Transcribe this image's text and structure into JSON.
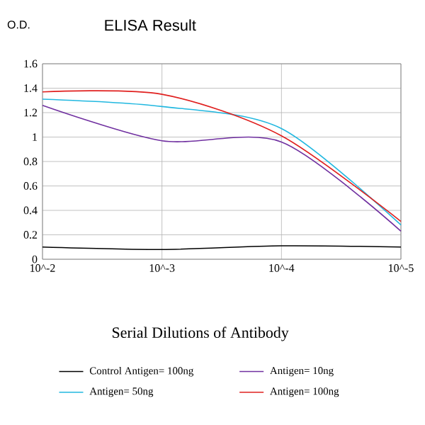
{
  "chart_data": {
    "type": "line",
    "title": "ELISA Result",
    "ylabel": "O.D.",
    "xlabel": "Serial Dilutions of Antibody",
    "categories": [
      "10^-2",
      "10^-3",
      "10^-4",
      "10^-5"
    ],
    "series": [
      {
        "name": "Control Antigen= 100ng",
        "color": "#000000",
        "values": [
          0.1,
          0.08,
          0.11,
          0.1
        ]
      },
      {
        "name": "Antigen= 10ng",
        "color": "#7030a0",
        "values": [
          1.26,
          0.97,
          0.96,
          0.23
        ]
      },
      {
        "name": "Antigen= 50ng",
        "color": "#22b8e0",
        "values": [
          1.31,
          1.25,
          1.07,
          0.28
        ]
      },
      {
        "name": "Antigen= 100ng",
        "color": "#e0201f",
        "values": [
          1.37,
          1.35,
          1.01,
          0.31
        ]
      }
    ],
    "ylim": [
      0,
      1.6
    ],
    "yticks": [
      0,
      0.2,
      0.4,
      0.6,
      0.8,
      1,
      1.2,
      1.4,
      1.6
    ],
    "grid": true,
    "legend": "bottom",
    "marker": "none",
    "line_style": "solid"
  }
}
